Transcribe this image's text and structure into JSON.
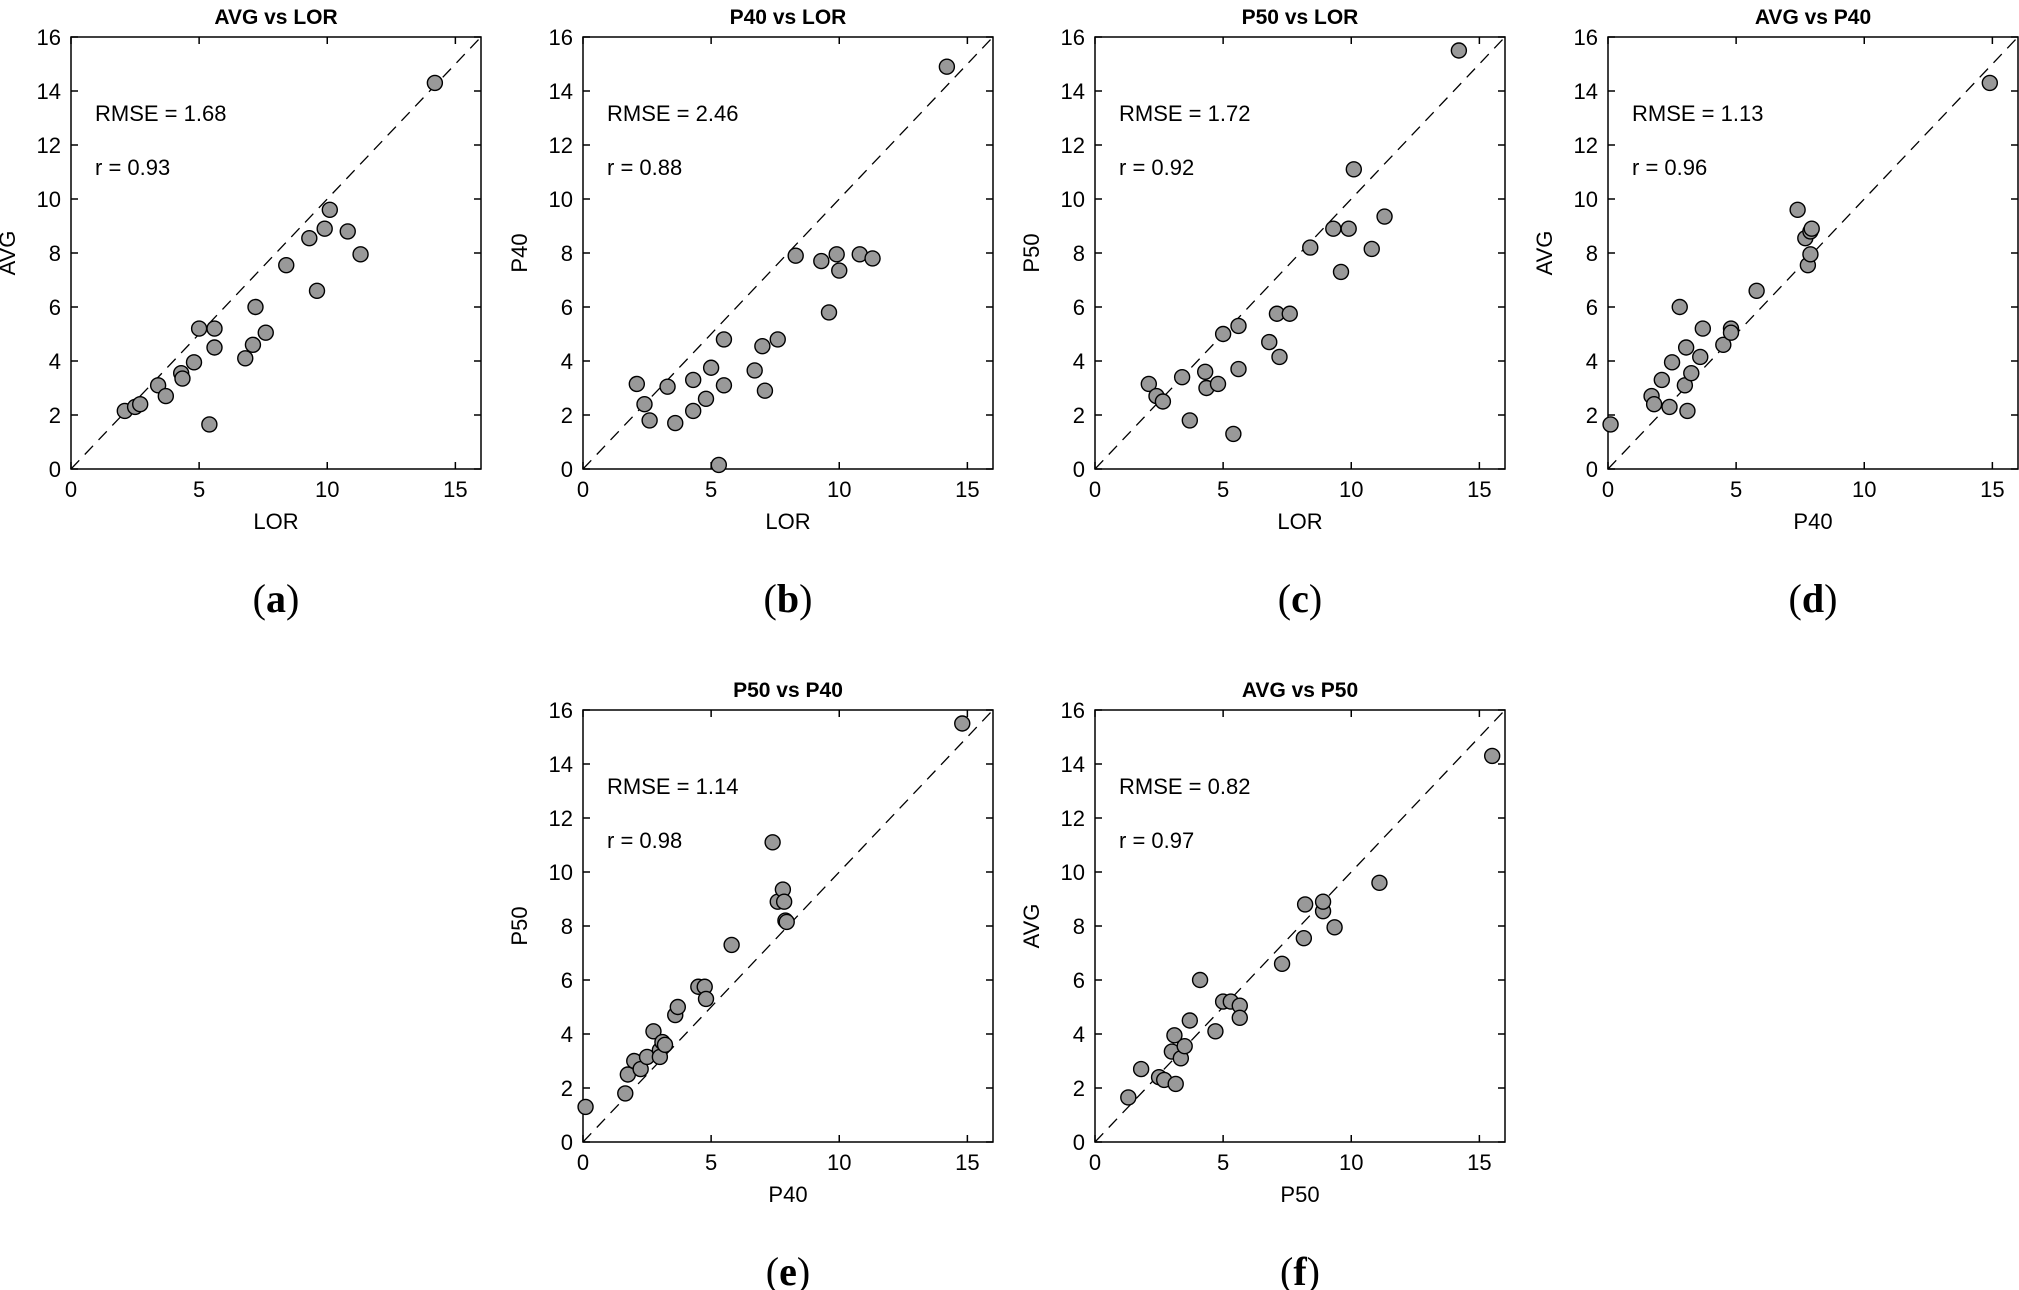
{
  "chart_data": [
    {
      "type": "scatter",
      "title": "AVG vs LOR",
      "xlabel": "LOR",
      "ylabel": "AVG",
      "xlim": [
        0,
        16
      ],
      "ylim": [
        0,
        16
      ],
      "xticks": [
        "0",
        "5",
        "10",
        "15"
      ],
      "yticks": [
        "0",
        "2",
        "4",
        "6",
        "8",
        "10",
        "12",
        "14",
        "16"
      ],
      "annotations": [
        "RMSE = 1.68",
        "r = 0.93"
      ],
      "panel_label": "(a)",
      "panel_letter": "a",
      "points": [
        [
          2.1,
          2.15
        ],
        [
          2.5,
          2.3
        ],
        [
          2.7,
          2.4
        ],
        [
          3.4,
          3.1
        ],
        [
          3.7,
          2.7
        ],
        [
          4.3,
          3.55
        ],
        [
          4.35,
          3.35
        ],
        [
          4.8,
          3.95
        ],
        [
          5.0,
          5.2
        ],
        [
          5.4,
          1.65
        ],
        [
          5.6,
          4.5
        ],
        [
          5.6,
          5.2
        ],
        [
          6.8,
          4.1
        ],
        [
          7.1,
          4.6
        ],
        [
          7.2,
          6.0
        ],
        [
          7.6,
          5.05
        ],
        [
          8.4,
          7.55
        ],
        [
          9.3,
          8.55
        ],
        [
          9.6,
          6.6
        ],
        [
          9.9,
          8.9
        ],
        [
          10.1,
          9.6
        ],
        [
          10.8,
          8.8
        ],
        [
          11.3,
          7.95
        ],
        [
          14.2,
          14.3
        ]
      ]
    },
    {
      "type": "scatter",
      "title": "P40 vs LOR",
      "xlabel": "LOR",
      "ylabel": "P40",
      "xlim": [
        0,
        16
      ],
      "ylim": [
        0,
        16
      ],
      "xticks": [
        "0",
        "5",
        "10",
        "15"
      ],
      "yticks": [
        "0",
        "2",
        "4",
        "6",
        "8",
        "10",
        "12",
        "14",
        "16"
      ],
      "annotations": [
        "RMSE = 2.46",
        "r = 0.88"
      ],
      "panel_label": "(b)",
      "panel_letter": "b",
      "points": [
        [
          2.1,
          3.15
        ],
        [
          2.4,
          2.4
        ],
        [
          2.6,
          1.8
        ],
        [
          3.3,
          3.05
        ],
        [
          3.6,
          1.7
        ],
        [
          4.3,
          3.3
        ],
        [
          4.3,
          2.15
        ],
        [
          4.8,
          2.6
        ],
        [
          5.0,
          3.75
        ],
        [
          5.3,
          0.15
        ],
        [
          5.5,
          3.1
        ],
        [
          5.5,
          4.8
        ],
        [
          6.7,
          3.65
        ],
        [
          7.0,
          4.55
        ],
        [
          7.1,
          2.9
        ],
        [
          7.6,
          4.8
        ],
        [
          8.3,
          7.9
        ],
        [
          9.3,
          7.7
        ],
        [
          9.6,
          5.8
        ],
        [
          9.9,
          7.95
        ],
        [
          10.0,
          7.35
        ],
        [
          10.8,
          7.95
        ],
        [
          11.3,
          7.8
        ],
        [
          14.2,
          14.9
        ]
      ]
    },
    {
      "type": "scatter",
      "title": "P50 vs LOR",
      "xlabel": "LOR",
      "ylabel": "P50",
      "xlim": [
        0,
        16
      ],
      "ylim": [
        0,
        16
      ],
      "xticks": [
        "0",
        "5",
        "10",
        "15"
      ],
      "yticks": [
        "0",
        "2",
        "4",
        "6",
        "8",
        "10",
        "12",
        "14",
        "16"
      ],
      "annotations": [
        "RMSE = 1.72",
        "r = 0.92"
      ],
      "panel_label": "(c)",
      "panel_letter": "c",
      "points": [
        [
          2.1,
          3.15
        ],
        [
          2.4,
          2.7
        ],
        [
          2.65,
          2.5
        ],
        [
          3.4,
          3.4
        ],
        [
          3.7,
          1.8
        ],
        [
          4.3,
          3.6
        ],
        [
          4.35,
          3.0
        ],
        [
          4.8,
          3.15
        ],
        [
          5.0,
          5.0
        ],
        [
          5.4,
          1.3
        ],
        [
          5.6,
          3.7
        ],
        [
          5.6,
          5.3
        ],
        [
          6.8,
          4.7
        ],
        [
          7.1,
          5.75
        ],
        [
          7.2,
          4.15
        ],
        [
          7.6,
          5.75
        ],
        [
          8.4,
          8.2
        ],
        [
          9.3,
          8.9
        ],
        [
          9.6,
          7.3
        ],
        [
          9.9,
          8.9
        ],
        [
          10.1,
          11.1
        ],
        [
          10.8,
          8.15
        ],
        [
          11.3,
          9.35
        ],
        [
          14.2,
          15.5
        ]
      ]
    },
    {
      "type": "scatter",
      "title": "AVG vs P40",
      "xlabel": "P40",
      "ylabel": "AVG",
      "xlim": [
        0,
        16
      ],
      "ylim": [
        0,
        16
      ],
      "xticks": [
        "0",
        "5",
        "10",
        "15"
      ],
      "yticks": [
        "0",
        "2",
        "4",
        "6",
        "8",
        "10",
        "12",
        "14",
        "16"
      ],
      "annotations": [
        "RMSE = 1.13",
        "r = 0.96"
      ],
      "panel_label": "(d)",
      "panel_letter": "d",
      "points": [
        [
          0.1,
          1.65
        ],
        [
          1.7,
          2.7
        ],
        [
          1.8,
          2.4
        ],
        [
          2.1,
          3.3
        ],
        [
          2.4,
          2.3
        ],
        [
          2.5,
          3.95
        ],
        [
          2.8,
          6.0
        ],
        [
          3.0,
          3.1
        ],
        [
          3.05,
          4.5
        ],
        [
          3.1,
          2.15
        ],
        [
          3.25,
          3.55
        ],
        [
          3.6,
          4.15
        ],
        [
          3.7,
          5.2
        ],
        [
          4.5,
          4.6
        ],
        [
          4.8,
          5.2
        ],
        [
          4.8,
          5.05
        ],
        [
          5.8,
          6.6
        ],
        [
          7.4,
          9.6
        ],
        [
          7.7,
          8.55
        ],
        [
          7.8,
          7.55
        ],
        [
          7.9,
          7.95
        ],
        [
          7.9,
          8.8
        ],
        [
          7.95,
          8.9
        ],
        [
          14.9,
          14.3
        ]
      ]
    },
    {
      "type": "scatter",
      "title": "P50 vs P40",
      "xlabel": "P40",
      "ylabel": "P50",
      "xlim": [
        0,
        16
      ],
      "ylim": [
        0,
        16
      ],
      "xticks": [
        "0",
        "5",
        "10",
        "15"
      ],
      "yticks": [
        "0",
        "2",
        "4",
        "6",
        "8",
        "10",
        "12",
        "14",
        "16"
      ],
      "annotations": [
        "RMSE = 1.14",
        "r = 0.98"
      ],
      "panel_label": "(e)",
      "panel_letter": "e",
      "points": [
        [
          0.1,
          1.3
        ],
        [
          1.65,
          1.8
        ],
        [
          1.75,
          2.5
        ],
        [
          2.0,
          3.0
        ],
        [
          2.25,
          2.7
        ],
        [
          2.5,
          3.15
        ],
        [
          2.75,
          4.1
        ],
        [
          3.0,
          3.4
        ],
        [
          3.0,
          3.15
        ],
        [
          3.1,
          3.7
        ],
        [
          3.2,
          3.6
        ],
        [
          3.6,
          4.7
        ],
        [
          3.7,
          5.0
        ],
        [
          4.5,
          5.75
        ],
        [
          4.75,
          5.75
        ],
        [
          4.8,
          5.3
        ],
        [
          5.8,
          7.3
        ],
        [
          7.4,
          11.1
        ],
        [
          7.6,
          8.9
        ],
        [
          7.8,
          9.35
        ],
        [
          7.85,
          8.9
        ],
        [
          7.9,
          8.2
        ],
        [
          7.95,
          8.15
        ],
        [
          14.8,
          15.5
        ]
      ]
    },
    {
      "type": "scatter",
      "title": "AVG vs P50",
      "xlabel": "P50",
      "ylabel": "AVG",
      "xlim": [
        0,
        16
      ],
      "ylim": [
        0,
        16
      ],
      "xticks": [
        "0",
        "5",
        "10",
        "15"
      ],
      "yticks": [
        "0",
        "2",
        "4",
        "6",
        "8",
        "10",
        "12",
        "14",
        "16"
      ],
      "annotations": [
        "RMSE = 0.82",
        "r = 0.97"
      ],
      "panel_label": "(f)",
      "panel_letter": "f",
      "points": [
        [
          1.3,
          1.65
        ],
        [
          1.8,
          2.7
        ],
        [
          2.5,
          2.4
        ],
        [
          2.7,
          2.3
        ],
        [
          3.0,
          3.35
        ],
        [
          3.1,
          3.95
        ],
        [
          3.15,
          2.15
        ],
        [
          3.35,
          3.1
        ],
        [
          3.5,
          3.55
        ],
        [
          3.7,
          4.5
        ],
        [
          4.1,
          6.0
        ],
        [
          4.7,
          4.1
        ],
        [
          5.0,
          5.2
        ],
        [
          5.3,
          5.2
        ],
        [
          5.65,
          5.05
        ],
        [
          5.65,
          4.6
        ],
        [
          7.3,
          6.6
        ],
        [
          8.15,
          7.55
        ],
        [
          8.2,
          8.8
        ],
        [
          8.9,
          8.55
        ],
        [
          8.9,
          8.9
        ],
        [
          9.35,
          7.95
        ],
        [
          11.1,
          9.6
        ],
        [
          15.5,
          14.3
        ]
      ]
    }
  ]
}
